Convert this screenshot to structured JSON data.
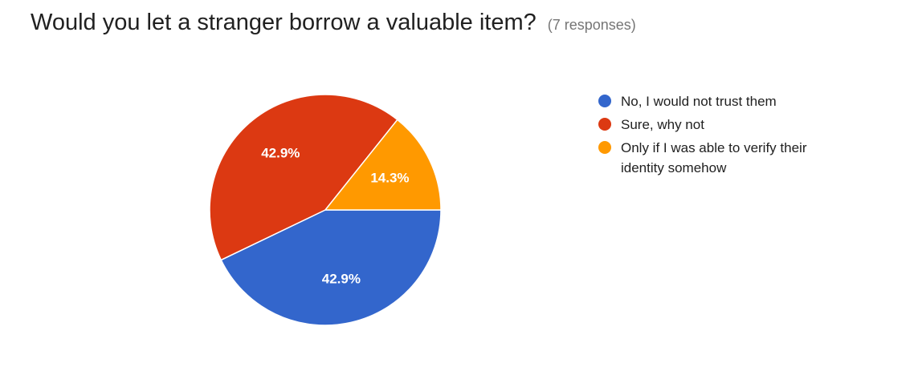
{
  "header": {
    "title": "Would you let a stranger borrow a valuable item?",
    "subtitle": "(7 responses)"
  },
  "chart_data": {
    "type": "pie",
    "title": "Would you let a stranger borrow a valuable item?",
    "subtitle": "(7 responses)",
    "legend_position": "right",
    "slices": [
      {
        "label": "No, I would not trust them",
        "value": 42.9,
        "display": "42.9%",
        "color": "#3366cc"
      },
      {
        "label": "Sure, why not",
        "value": 42.9,
        "display": "42.9%",
        "color": "#dc3912"
      },
      {
        "label": "Only if I was able to verify their identity somehow",
        "value": 14.3,
        "display": "14.3%",
        "color": "#ff9900"
      }
    ]
  }
}
